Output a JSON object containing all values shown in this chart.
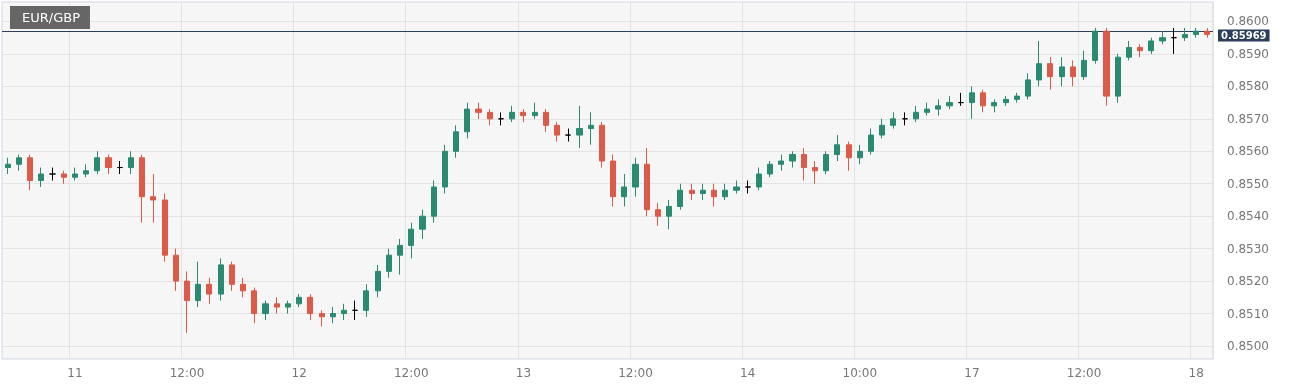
{
  "chart_data": {
    "type": "candlestick",
    "title": "EUR/GBP",
    "categories": [
      null,
      null,
      null,
      null,
      null,
      null,
      "11",
      null,
      null,
      null,
      null,
      null,
      null,
      null,
      null,
      null,
      "12:00",
      null,
      null,
      null,
      null,
      null,
      null,
      null,
      null,
      null,
      "12",
      null,
      null,
      null,
      null,
      null,
      null,
      null,
      null,
      null,
      "12:00",
      null,
      null,
      null,
      null,
      null,
      null,
      null,
      null,
      null,
      "13",
      null,
      null,
      null,
      null,
      null,
      null,
      null,
      null,
      null,
      "12:00",
      null,
      null,
      null,
      null,
      null,
      null,
      null,
      null,
      null,
      "14",
      null,
      null,
      null,
      null,
      null,
      null,
      null,
      null,
      null,
      "10:00",
      null,
      null,
      null,
      null,
      null,
      null,
      null,
      null,
      null,
      "17",
      null,
      null,
      null,
      null,
      null,
      null,
      null,
      null,
      null,
      "12:00",
      null,
      null,
      null,
      null,
      null,
      null,
      null,
      null,
      null,
      "18",
      null
    ],
    "ohlc": [
      [
        0.8555,
        0.8558,
        0.8553,
        0.8556
      ],
      [
        0.8556,
        0.8559,
        0.8554,
        0.8558
      ],
      [
        0.8558,
        0.8559,
        0.8548,
        0.8551
      ],
      [
        0.8551,
        0.8555,
        0.8549,
        0.8553
      ],
      [
        0.8553,
        0.8555,
        0.8551,
        0.8553
      ],
      [
        0.8553,
        0.8554,
        0.855,
        0.8552
      ],
      [
        0.8552,
        0.8555,
        0.8551,
        0.8553
      ],
      [
        0.8553,
        0.8556,
        0.8552,
        0.8554
      ],
      [
        0.8554,
        0.856,
        0.8553,
        0.8558
      ],
      [
        0.8558,
        0.8559,
        0.8553,
        0.8555
      ],
      [
        0.8555,
        0.8557,
        0.8553,
        0.8555
      ],
      [
        0.8555,
        0.856,
        0.8553,
        0.8558
      ],
      [
        0.8558,
        0.8559,
        0.8538,
        0.8546
      ],
      [
        0.8546,
        0.8553,
        0.8538,
        0.8545
      ],
      [
        0.8545,
        0.8547,
        0.8526,
        0.8528
      ],
      [
        0.8528,
        0.853,
        0.8517,
        0.852
      ],
      [
        0.852,
        0.8523,
        0.8504,
        0.8514
      ],
      [
        0.8514,
        0.8526,
        0.8512,
        0.8519
      ],
      [
        0.8519,
        0.8521,
        0.8513,
        0.8516
      ],
      [
        0.8516,
        0.8527,
        0.8514,
        0.8525
      ],
      [
        0.8525,
        0.8526,
        0.8517,
        0.8519
      ],
      [
        0.8519,
        0.8521,
        0.8515,
        0.8517
      ],
      [
        0.8517,
        0.8518,
        0.8507,
        0.851
      ],
      [
        0.851,
        0.8514,
        0.8508,
        0.8513
      ],
      [
        0.8513,
        0.8515,
        0.851,
        0.8512
      ],
      [
        0.8512,
        0.8514,
        0.851,
        0.8513
      ],
      [
        0.8513,
        0.8516,
        0.8512,
        0.8515
      ],
      [
        0.8515,
        0.8516,
        0.8508,
        0.851
      ],
      [
        0.851,
        0.8511,
        0.8506,
        0.8509
      ],
      [
        0.8509,
        0.8512,
        0.8507,
        0.851
      ],
      [
        0.851,
        0.8513,
        0.8508,
        0.8511
      ],
      [
        0.8511,
        0.8514,
        0.8508,
        0.8511
      ],
      [
        0.8511,
        0.8519,
        0.8509,
        0.8517
      ],
      [
        0.8517,
        0.8525,
        0.8515,
        0.8523
      ],
      [
        0.8523,
        0.853,
        0.8521,
        0.8528
      ],
      [
        0.8528,
        0.8533,
        0.8522,
        0.8531
      ],
      [
        0.8531,
        0.8538,
        0.8527,
        0.8536
      ],
      [
        0.8536,
        0.8542,
        0.8533,
        0.854
      ],
      [
        0.854,
        0.8551,
        0.8538,
        0.8549
      ],
      [
        0.8549,
        0.8562,
        0.8547,
        0.856
      ],
      [
        0.856,
        0.8568,
        0.8558,
        0.8566
      ],
      [
        0.8566,
        0.8575,
        0.8564,
        0.8573
      ],
      [
        0.8573,
        0.8575,
        0.857,
        0.8572
      ],
      [
        0.8572,
        0.8573,
        0.8568,
        0.857
      ],
      [
        0.857,
        0.8572,
        0.8568,
        0.857
      ],
      [
        0.857,
        0.8574,
        0.8569,
        0.8572
      ],
      [
        0.8572,
        0.8573,
        0.8569,
        0.8571
      ],
      [
        0.8571,
        0.8575,
        0.857,
        0.8572
      ],
      [
        0.8572,
        0.8573,
        0.8566,
        0.8568
      ],
      [
        0.8568,
        0.8569,
        0.8563,
        0.8565
      ],
      [
        0.8565,
        0.8567,
        0.8563,
        0.8565
      ],
      [
        0.8565,
        0.8574,
        0.8561,
        0.8567
      ],
      [
        0.8567,
        0.8572,
        0.8562,
        0.8568
      ],
      [
        0.8568,
        0.8569,
        0.8555,
        0.8557
      ],
      [
        0.8557,
        0.8559,
        0.8543,
        0.8546
      ],
      [
        0.8546,
        0.8553,
        0.8543,
        0.8549
      ],
      [
        0.8549,
        0.8558,
        0.8546,
        0.8556
      ],
      [
        0.8556,
        0.8561,
        0.854,
        0.8542
      ],
      [
        0.8542,
        0.8544,
        0.8537,
        0.854
      ],
      [
        0.854,
        0.8545,
        0.8536,
        0.8543
      ],
      [
        0.8543,
        0.855,
        0.8542,
        0.8548
      ],
      [
        0.8548,
        0.855,
        0.8545,
        0.8547
      ],
      [
        0.8547,
        0.855,
        0.8545,
        0.8548
      ],
      [
        0.8548,
        0.855,
        0.8543,
        0.8546
      ],
      [
        0.8546,
        0.855,
        0.8545,
        0.8548
      ],
      [
        0.8548,
        0.8551,
        0.8547,
        0.8549
      ],
      [
        0.8549,
        0.8551,
        0.8547,
        0.8549
      ],
      [
        0.8549,
        0.8555,
        0.8548,
        0.8553
      ],
      [
        0.8553,
        0.8557,
        0.8552,
        0.8556
      ],
      [
        0.8556,
        0.8559,
        0.8554,
        0.8557
      ],
      [
        0.8557,
        0.856,
        0.8555,
        0.8559
      ],
      [
        0.8559,
        0.8561,
        0.8551,
        0.8555
      ],
      [
        0.8555,
        0.8557,
        0.855,
        0.8554
      ],
      [
        0.8554,
        0.856,
        0.8553,
        0.8559
      ],
      [
        0.8559,
        0.8565,
        0.8557,
        0.8562
      ],
      [
        0.8562,
        0.8563,
        0.8554,
        0.8558
      ],
      [
        0.8558,
        0.8562,
        0.8556,
        0.856
      ],
      [
        0.856,
        0.8567,
        0.8559,
        0.8565
      ],
      [
        0.8565,
        0.857,
        0.8564,
        0.8568
      ],
      [
        0.8568,
        0.8572,
        0.8567,
        0.857
      ],
      [
        0.857,
        0.8572,
        0.8568,
        0.857
      ],
      [
        0.857,
        0.8574,
        0.8569,
        0.8572
      ],
      [
        0.8572,
        0.8575,
        0.8571,
        0.8573
      ],
      [
        0.8573,
        0.8576,
        0.8571,
        0.8574
      ],
      [
        0.8574,
        0.8577,
        0.8573,
        0.8575
      ],
      [
        0.8575,
        0.8578,
        0.8574,
        0.8575
      ],
      [
        0.8575,
        0.858,
        0.857,
        0.8578
      ],
      [
        0.8578,
        0.8579,
        0.8572,
        0.8574
      ],
      [
        0.8574,
        0.8576,
        0.8572,
        0.8575
      ],
      [
        0.8575,
        0.8577,
        0.8574,
        0.8576
      ],
      [
        0.8576,
        0.8578,
        0.8575,
        0.8577
      ],
      [
        0.8577,
        0.8584,
        0.8576,
        0.8582
      ],
      [
        0.8582,
        0.8594,
        0.858,
        0.8587
      ],
      [
        0.8587,
        0.8589,
        0.8579,
        0.8583
      ],
      [
        0.8583,
        0.8589,
        0.858,
        0.8586
      ],
      [
        0.8586,
        0.8588,
        0.858,
        0.8583
      ],
      [
        0.8583,
        0.8591,
        0.8582,
        0.8588
      ],
      [
        0.8588,
        0.8598,
        0.8587,
        0.8597
      ],
      [
        0.8597,
        0.8598,
        0.8574,
        0.8577
      ],
      [
        0.8577,
        0.859,
        0.8575,
        0.8589
      ],
      [
        0.8589,
        0.8594,
        0.8588,
        0.8592
      ],
      [
        0.8592,
        0.8593,
        0.8589,
        0.8591
      ],
      [
        0.8591,
        0.8595,
        0.859,
        0.8594
      ],
      [
        0.8594,
        0.8597,
        0.8593,
        0.8595
      ],
      [
        0.8595,
        0.8598,
        0.859,
        0.8595
      ],
      [
        0.8595,
        0.8598,
        0.8594,
        0.8596
      ],
      [
        0.8596,
        0.8598,
        0.8595,
        0.8597
      ],
      [
        0.8597,
        0.8598,
        0.8595,
        0.8596
      ]
    ],
    "ylim": [
      0.8496,
      0.8606
    ],
    "yticks": [
      {
        "value": 0.85,
        "label": "0.8500"
      },
      {
        "value": 0.851,
        "label": "0.8510"
      },
      {
        "value": 0.852,
        "label": "0.8520"
      },
      {
        "value": 0.853,
        "label": "0.8530"
      },
      {
        "value": 0.854,
        "label": "0.8540"
      },
      {
        "value": 0.855,
        "label": "0.8550"
      },
      {
        "value": 0.856,
        "label": "0.8560"
      },
      {
        "value": 0.857,
        "label": "0.8570"
      },
      {
        "value": 0.858,
        "label": "0.8580"
      },
      {
        "value": 0.859,
        "label": "0.8590"
      },
      {
        "value": 0.86,
        "label": "0.8600"
      }
    ],
    "ref_lines": [
      {
        "axis": "y",
        "value": 0.85969,
        "label": "0.85969",
        "color": "#2b3f5c"
      }
    ],
    "grid": true
  }
}
